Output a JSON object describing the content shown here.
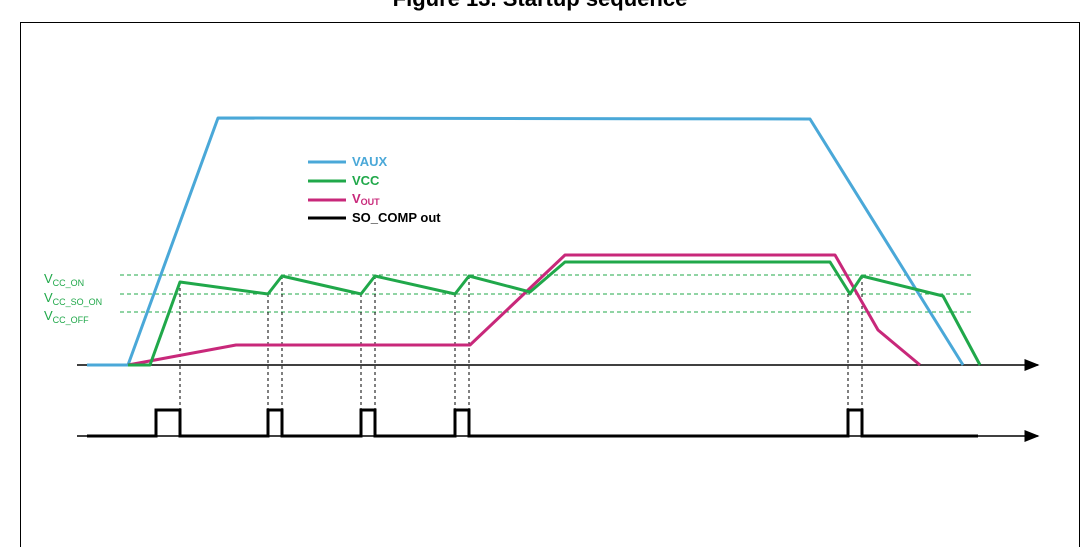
{
  "header": {
    "title": "Figure 13. Startup sequence"
  },
  "legend": {
    "items": [
      {
        "label": "VAUX",
        "color": "#4aa8d8"
      },
      {
        "label": "VCC",
        "color": "#20a84a"
      },
      {
        "label_main": "V",
        "label_sub": "OUT",
        "color": "#c8287a"
      },
      {
        "label": "SO_COMP out",
        "color": "#000000"
      }
    ]
  },
  "levels": {
    "vcc_on": {
      "main": "V",
      "sub": "CC_ON"
    },
    "vcc_so_on": {
      "main": "V",
      "sub": "CC_SO_ON"
    },
    "vcc_off": {
      "main": "V",
      "sub": "CC_OFF"
    }
  },
  "colors": {
    "vaux": "#4aa8d8",
    "vcc": "#20a84a",
    "vout": "#c8287a",
    "so_comp": "#000000",
    "threshold": "#20a84a",
    "axis": "#000000",
    "guides": "#000000"
  }
}
